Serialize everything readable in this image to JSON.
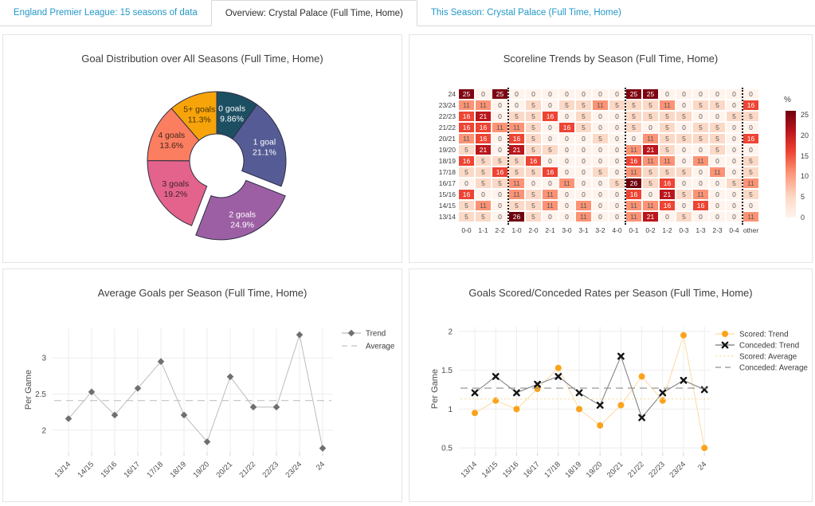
{
  "tabs": [
    {
      "label": "England Premier League: 15 seasons of data",
      "active": false
    },
    {
      "label": "Overview: Crystal Palace (Full Time, Home)",
      "active": true
    },
    {
      "label": "This Season: Crystal Palace (Full Time, Home)",
      "active": false
    }
  ],
  "colors": {
    "tab_link": "#2398c9",
    "tab_active_text": "#2f2f2f",
    "panel_border": "#e4e4e4",
    "title_text": "#3d3d3d",
    "grid_line": "#ededed",
    "scored_orange": "#fba31c",
    "conceded_black": "#141414",
    "trend_gray": "#6f6f6f",
    "heat_low": "#fff3ec",
    "heat_high": "#6f010e"
  },
  "chart_data": [
    {
      "type": "pie",
      "title": "Goal Distribution over All Seasons (Full Time, Home)",
      "labels": [
        "0 goals",
        "1 goal",
        "2 goals",
        "3 goals",
        "4 goals",
        "5+ goals"
      ],
      "values": [
        9.86,
        21.1,
        24.9,
        19.2,
        13.6,
        11.3
      ],
      "pct_labels": [
        "9.86%",
        "21.1%",
        "24.9%",
        "19.2%",
        "13.6%",
        "11.3%"
      ],
      "slice_colors": [
        "#1d4f63",
        "#555c95",
        "#9d5fa4",
        "#e4638c",
        "#fc7e61",
        "#f7a40b"
      ],
      "label_colors": [
        "#ffffff",
        "#ffffff",
        "#ffffff",
        "#3f2230",
        "#43271c",
        "#463100"
      ],
      "pulled_slice": "2 goals",
      "hole": 0.39
    },
    {
      "type": "heatmap",
      "title": "Scoreline Trends by Season (Full Time, Home)",
      "rows": [
        "24",
        "23/24",
        "22/23",
        "21/22",
        "20/21",
        "19/20",
        "18/19",
        "17/18",
        "16/17",
        "15/16",
        "14/15",
        "13/14"
      ],
      "columns": [
        "0-0",
        "1-1",
        "2-2",
        "1-0",
        "2-0",
        "2-1",
        "3-0",
        "3-1",
        "3-2",
        "4-0",
        "0-1",
        "0-2",
        "1-2",
        "0-3",
        "1-3",
        "2-3",
        "0-4",
        "other"
      ],
      "values": [
        [
          25,
          0,
          25,
          0,
          0,
          0,
          0,
          0,
          0,
          0,
          25,
          25,
          0,
          0,
          0,
          0,
          0,
          0
        ],
        [
          11,
          11,
          0,
          0,
          5,
          0,
          5,
          5,
          11,
          5,
          5,
          5,
          11,
          0,
          5,
          5,
          0,
          16
        ],
        [
          16,
          21,
          0,
          5,
          5,
          16,
          0,
          5,
          0,
          0,
          5,
          5,
          5,
          5,
          0,
          0,
          5,
          5
        ],
        [
          16,
          16,
          11,
          11,
          5,
          0,
          16,
          5,
          0,
          0,
          5,
          0,
          5,
          0,
          5,
          5,
          0,
          0
        ],
        [
          11,
          16,
          0,
          16,
          5,
          0,
          0,
          0,
          5,
          0,
          0,
          11,
          5,
          5,
          5,
          5,
          0,
          16
        ],
        [
          5,
          21,
          0,
          21,
          5,
          5,
          0,
          0,
          0,
          0,
          11,
          21,
          5,
          0,
          0,
          5,
          0,
          0
        ],
        [
          16,
          5,
          5,
          5,
          16,
          0,
          0,
          0,
          0,
          0,
          16,
          11,
          11,
          0,
          11,
          0,
          0,
          5
        ],
        [
          5,
          5,
          16,
          5,
          5,
          16,
          0,
          0,
          5,
          0,
          11,
          5,
          5,
          5,
          0,
          11,
          0,
          5
        ],
        [
          0,
          5,
          5,
          11,
          0,
          0,
          11,
          0,
          0,
          5,
          26,
          5,
          16,
          0,
          0,
          0,
          5,
          11
        ],
        [
          16,
          0,
          0,
          11,
          5,
          11,
          0,
          0,
          0,
          0,
          16,
          0,
          21,
          5,
          11,
          0,
          0,
          5
        ],
        [
          5,
          11,
          0,
          5,
          5,
          11,
          0,
          11,
          0,
          0,
          11,
          11,
          16,
          0,
          16,
          0,
          0,
          0
        ],
        [
          5,
          5,
          0,
          26,
          5,
          0,
          0,
          11,
          0,
          0,
          11,
          21,
          0,
          5,
          0,
          0,
          0,
          11
        ]
      ],
      "group_separators_after": [
        "2-2",
        "4-0",
        "0-4"
      ],
      "colorbar": {
        "title": "%",
        "ticks": [
          25,
          20,
          15,
          10,
          5,
          0
        ],
        "min": 0,
        "max": 26
      }
    },
    {
      "type": "line",
      "title": "Average Goals per Season (Full Time, Home)",
      "ylabel": "Per Game",
      "x": [
        "13/14",
        "14/15",
        "15/16",
        "16/17",
        "17/18",
        "18/19",
        "19/20",
        "20/21",
        "21/22",
        "22/23",
        "23/24",
        "24"
      ],
      "yticks": [
        2,
        2.5,
        3
      ],
      "ylim": [
        1.69,
        3.41
      ],
      "series": [
        {
          "name": "Trend",
          "marker": "diamond",
          "marker_color": "#6f6f6f",
          "line_color": "#bcbcbc",
          "values": [
            2.16,
            2.53,
            2.21,
            2.58,
            2.95,
            2.21,
            1.84,
            2.74,
            2.32,
            2.32,
            3.32,
            1.75
          ]
        },
        {
          "name": "Average",
          "dash": "dash",
          "line_color": "#c2c2c2",
          "value": 2.41
        }
      ]
    },
    {
      "type": "line",
      "title": "Goals Scored/Conceded Rates per Season (Full Time, Home)",
      "ylabel": "Per Game",
      "x": [
        "13/14",
        "14/15",
        "15/16",
        "16/17",
        "17/18",
        "18/19",
        "19/20",
        "20/21",
        "21/22",
        "22/23",
        "23/24",
        "24"
      ],
      "yticks": [
        0.5,
        1,
        1.5,
        2
      ],
      "ylim": [
        0.44,
        2.06
      ],
      "series": [
        {
          "name": "Scored: Trend",
          "marker": "circle",
          "marker_color": "#fba31c",
          "line_color": "#fed9a3",
          "values": [
            0.95,
            1.11,
            1.0,
            1.26,
            1.53,
            1.0,
            0.79,
            1.05,
            1.42,
            1.11,
            1.95,
            0.5
          ]
        },
        {
          "name": "Conceded: Trend",
          "marker": "x",
          "marker_color": "#141414",
          "line_color": "#75797e",
          "values": [
            1.21,
            1.42,
            1.21,
            1.32,
            1.42,
            1.21,
            1.05,
            1.68,
            0.89,
            1.21,
            1.37,
            1.25
          ]
        },
        {
          "name": "Scored: Average",
          "dash": "dot",
          "line_color": "#fcdfae",
          "value": 1.13
        },
        {
          "name": "Conceded: Average",
          "dash": "dash",
          "line_color": "#8f8f8f",
          "value": 1.27
        }
      ]
    }
  ]
}
